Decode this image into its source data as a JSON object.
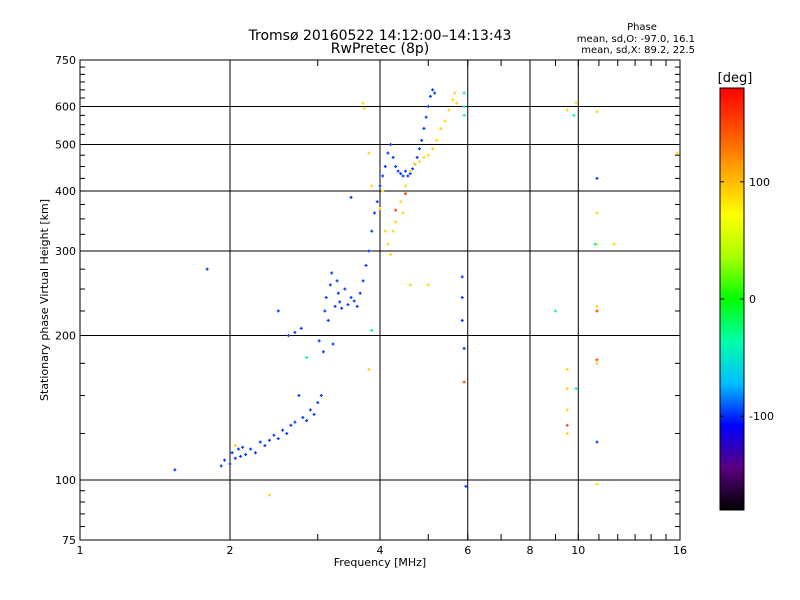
{
  "chart_data": {
    "type": "scatter",
    "title": "Tromsø 20160522 14:12:00–14:13:43",
    "subtitle": "RwPretec (8p)",
    "xlabel": "Frequency [MHz]",
    "ylabel": "Stationary phase Virtual Height [km]",
    "x_scale": "log",
    "y_scale": "log",
    "xlim": [
      1,
      16
    ],
    "ylim": [
      75,
      750
    ],
    "xticks": [
      1,
      2,
      4,
      6,
      8,
      10,
      16
    ],
    "yticks": [
      75,
      100,
      200,
      300,
      400,
      500,
      600,
      750
    ],
    "x_gridlines": [
      2,
      4,
      6,
      8,
      10
    ],
    "y_gridlines": [
      100,
      200,
      300,
      400,
      500,
      600
    ],
    "grid": true,
    "stats": {
      "heading": "Phase",
      "line_o": "mean, sd,O: -97.0, 16.1",
      "line_x": "mean, sd,X:  89.2, 22.5"
    },
    "colorbar": {
      "label": "[deg]",
      "min": -180,
      "max": 180,
      "ticks": [
        100,
        0,
        -100
      ],
      "colors": [
        "#000000",
        "#5a0080",
        "#0000ff",
        "#00bfff",
        "#00ffaa",
        "#00ff00",
        "#aaff00",
        "#ffff00",
        "#ffaa00",
        "#ff5000",
        "#ff0000"
      ]
    },
    "series": [
      {
        "mode": "O",
        "phase": -97,
        "points": [
          [
            1.55,
            105
          ],
          [
            1.8,
            275
          ],
          [
            1.92,
            107
          ],
          [
            1.95,
            110
          ],
          [
            2.0,
            108
          ],
          [
            2.02,
            114
          ],
          [
            2.05,
            111
          ],
          [
            2.08,
            116
          ],
          [
            2.1,
            112
          ],
          [
            2.12,
            117
          ],
          [
            2.15,
            113
          ],
          [
            2.2,
            116
          ],
          [
            2.25,
            114
          ],
          [
            2.3,
            120
          ],
          [
            2.35,
            118
          ],
          [
            2.4,
            121
          ],
          [
            2.45,
            124
          ],
          [
            2.5,
            122
          ],
          [
            2.5,
            225
          ],
          [
            2.55,
            127
          ],
          [
            2.6,
            125
          ],
          [
            2.62,
            200
          ],
          [
            2.65,
            130
          ],
          [
            2.7,
            132
          ],
          [
            2.75,
            150
          ],
          [
            2.7,
            203
          ],
          [
            2.78,
            207
          ],
          [
            2.8,
            135
          ],
          [
            2.85,
            133
          ],
          [
            2.9,
            140
          ],
          [
            2.95,
            137
          ],
          [
            3.0,
            145
          ],
          [
            3.02,
            195
          ],
          [
            3.05,
            150
          ],
          [
            3.08,
            185
          ],
          [
            3.1,
            225
          ],
          [
            3.12,
            240
          ],
          [
            3.15,
            215
          ],
          [
            3.18,
            255
          ],
          [
            3.2,
            270
          ],
          [
            3.22,
            192
          ],
          [
            3.25,
            230
          ],
          [
            3.28,
            260
          ],
          [
            3.3,
            245
          ],
          [
            3.32,
            235
          ],
          [
            3.35,
            228
          ],
          [
            3.4,
            250
          ],
          [
            3.45,
            232
          ],
          [
            3.5,
            240
          ],
          [
            3.55,
            236
          ],
          [
            3.6,
            230
          ],
          [
            3.65,
            245
          ],
          [
            3.7,
            260
          ],
          [
            3.75,
            280
          ],
          [
            3.8,
            300
          ],
          [
            3.85,
            330
          ],
          [
            3.9,
            360
          ],
          [
            3.95,
            380
          ],
          [
            4.0,
            410
          ],
          [
            4.05,
            430
          ],
          [
            4.1,
            450
          ],
          [
            4.15,
            480
          ],
          [
            4.2,
            500
          ],
          [
            4.25,
            470
          ],
          [
            4.3,
            450
          ],
          [
            4.35,
            440
          ],
          [
            4.4,
            435
          ],
          [
            4.45,
            430
          ],
          [
            4.5,
            440
          ],
          [
            4.55,
            430
          ],
          [
            4.6,
            435
          ],
          [
            4.65,
            445
          ],
          [
            4.7,
            455
          ],
          [
            4.75,
            470
          ],
          [
            4.8,
            490
          ],
          [
            4.85,
            510
          ],
          [
            4.9,
            540
          ],
          [
            4.95,
            570
          ],
          [
            5.0,
            600
          ],
          [
            5.05,
            630
          ],
          [
            5.1,
            650
          ],
          [
            5.15,
            640
          ],
          [
            3.5,
            388
          ],
          [
            5.95,
            97
          ],
          [
            5.85,
            265
          ],
          [
            5.85,
            240
          ],
          [
            5.85,
            215
          ],
          [
            5.9,
            188
          ],
          [
            10.9,
            425
          ],
          [
            10.9,
            120
          ]
        ]
      },
      {
        "mode": "X",
        "phase": 89,
        "points": [
          [
            3.7,
            610
          ],
          [
            3.72,
            595
          ],
          [
            3.8,
            480
          ],
          [
            3.85,
            410
          ],
          [
            4.0,
            368
          ],
          [
            4.05,
            400
          ],
          [
            4.1,
            330
          ],
          [
            4.15,
            310
          ],
          [
            4.2,
            295
          ],
          [
            4.25,
            330
          ],
          [
            4.3,
            345
          ],
          [
            4.4,
            380
          ],
          [
            4.45,
            360
          ],
          [
            4.5,
            410
          ],
          [
            4.6,
            440
          ],
          [
            4.7,
            455
          ],
          [
            4.8,
            460
          ],
          [
            4.9,
            470
          ],
          [
            5.0,
            475
          ],
          [
            5.1,
            490
          ],
          [
            5.2,
            510
          ],
          [
            5.3,
            540
          ],
          [
            5.4,
            560
          ],
          [
            5.5,
            590
          ],
          [
            5.6,
            620
          ],
          [
            5.65,
            640
          ],
          [
            5.7,
            610
          ],
          [
            4.6,
            255
          ],
          [
            5.0,
            255
          ],
          [
            3.8,
            170
          ],
          [
            2.4,
            93
          ],
          [
            2.05,
            118
          ],
          [
            9.5,
            590
          ],
          [
            9.9,
            610
          ],
          [
            9.5,
            170
          ],
          [
            9.5,
            155
          ],
          [
            9.5,
            140
          ],
          [
            9.5,
            125
          ],
          [
            10.9,
            585
          ],
          [
            10.9,
            360
          ],
          [
            10.9,
            310
          ],
          [
            10.9,
            230
          ],
          [
            10.9,
            175
          ],
          [
            11.8,
            310
          ],
          [
            15.8,
            480
          ],
          [
            10.9,
            98
          ]
        ]
      },
      {
        "mode": "scattered",
        "phase": -40,
        "points": [
          [
            5.9,
            640
          ],
          [
            5.9,
            600
          ],
          [
            5.9,
            575
          ],
          [
            9.8,
            575
          ],
          [
            9.9,
            155
          ],
          [
            9.0,
            225
          ],
          [
            10.8,
            310
          ],
          [
            2.85,
            180
          ],
          [
            3.85,
            205
          ]
        ]
      },
      {
        "mode": "outliers-red",
        "phase": 150,
        "points": [
          [
            4.3,
            365
          ],
          [
            4.5,
            395
          ],
          [
            5.9,
            160
          ],
          [
            10.9,
            225
          ],
          [
            10.9,
            178
          ],
          [
            9.5,
            130
          ]
        ]
      }
    ]
  }
}
